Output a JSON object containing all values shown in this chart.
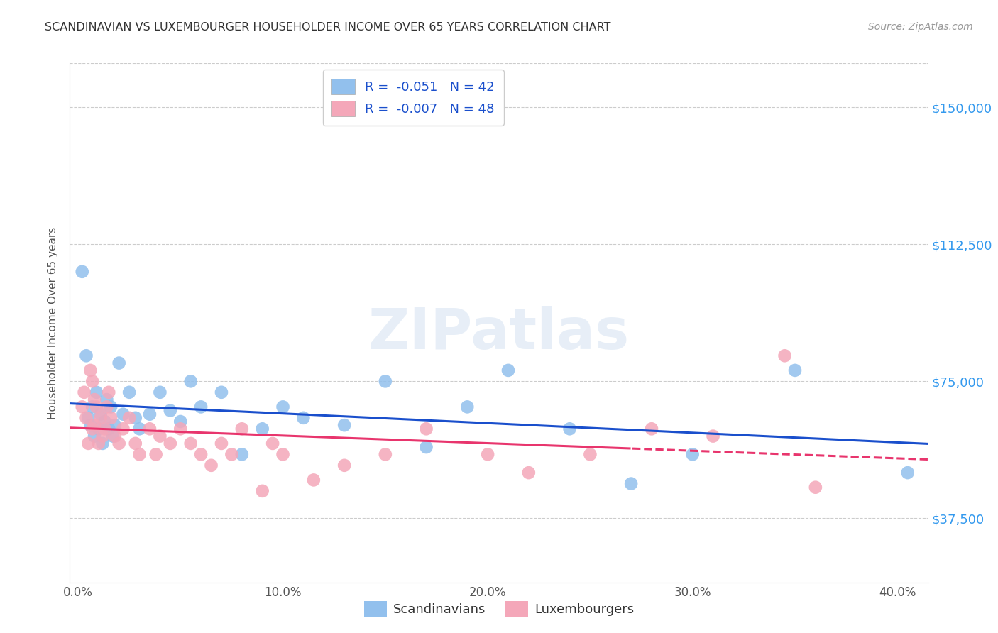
{
  "title": "SCANDINAVIAN VS LUXEMBOURGER HOUSEHOLDER INCOME OVER 65 YEARS CORRELATION CHART",
  "source": "Source: ZipAtlas.com",
  "ylabel": "Householder Income Over 65 years",
  "xlabel_ticks": [
    "0.0%",
    "10.0%",
    "20.0%",
    "30.0%",
    "40.0%"
  ],
  "xlabel_vals": [
    0.0,
    0.1,
    0.2,
    0.3,
    0.4
  ],
  "ytick_labels": [
    "$37,500",
    "$75,000",
    "$112,500",
    "$150,000"
  ],
  "ytick_vals": [
    37500,
    75000,
    112500,
    150000
  ],
  "ylim": [
    20000,
    162000
  ],
  "xlim": [
    -0.004,
    0.415
  ],
  "legend1_r": "-0.051",
  "legend1_n": "N = 42",
  "legend2_r": "-0.007",
  "legend2_n": "N = 48",
  "title_color": "#333333",
  "source_color": "#999999",
  "blue_color": "#92c0ed",
  "pink_color": "#f4a7b9",
  "blue_line_color": "#1a4fcc",
  "pink_line_color": "#e8356d",
  "ytick_color": "#3399ee",
  "watermark": "ZIPatlas",
  "scand_x": [
    0.002,
    0.004,
    0.005,
    0.006,
    0.007,
    0.008,
    0.009,
    0.01,
    0.011,
    0.012,
    0.013,
    0.014,
    0.015,
    0.016,
    0.017,
    0.018,
    0.02,
    0.022,
    0.025,
    0.028,
    0.03,
    0.035,
    0.04,
    0.045,
    0.05,
    0.055,
    0.06,
    0.07,
    0.08,
    0.09,
    0.1,
    0.11,
    0.13,
    0.15,
    0.17,
    0.19,
    0.21,
    0.24,
    0.27,
    0.3,
    0.35,
    0.405
  ],
  "scand_y": [
    105000,
    82000,
    65000,
    63000,
    68000,
    60000,
    72000,
    62000,
    66000,
    58000,
    64000,
    70000,
    62000,
    68000,
    60000,
    63000,
    80000,
    66000,
    72000,
    65000,
    62000,
    66000,
    72000,
    67000,
    64000,
    75000,
    68000,
    72000,
    55000,
    62000,
    68000,
    65000,
    63000,
    75000,
    57000,
    68000,
    78000,
    62000,
    47000,
    55000,
    78000,
    50000
  ],
  "luxem_x": [
    0.002,
    0.003,
    0.004,
    0.005,
    0.006,
    0.007,
    0.007,
    0.008,
    0.008,
    0.009,
    0.01,
    0.011,
    0.012,
    0.013,
    0.014,
    0.015,
    0.016,
    0.018,
    0.02,
    0.022,
    0.025,
    0.028,
    0.03,
    0.035,
    0.038,
    0.04,
    0.045,
    0.05,
    0.055,
    0.06,
    0.065,
    0.07,
    0.075,
    0.08,
    0.09,
    0.095,
    0.1,
    0.115,
    0.13,
    0.15,
    0.17,
    0.2,
    0.22,
    0.25,
    0.28,
    0.31,
    0.345,
    0.36
  ],
  "luxem_y": [
    68000,
    72000,
    65000,
    58000,
    78000,
    75000,
    62000,
    70000,
    63000,
    68000,
    58000,
    65000,
    60000,
    62000,
    68000,
    72000,
    65000,
    60000,
    58000,
    62000,
    65000,
    58000,
    55000,
    62000,
    55000,
    60000,
    58000,
    62000,
    58000,
    55000,
    52000,
    58000,
    55000,
    62000,
    45000,
    58000,
    55000,
    48000,
    52000,
    55000,
    62000,
    55000,
    50000,
    55000,
    62000,
    60000,
    82000,
    46000
  ]
}
